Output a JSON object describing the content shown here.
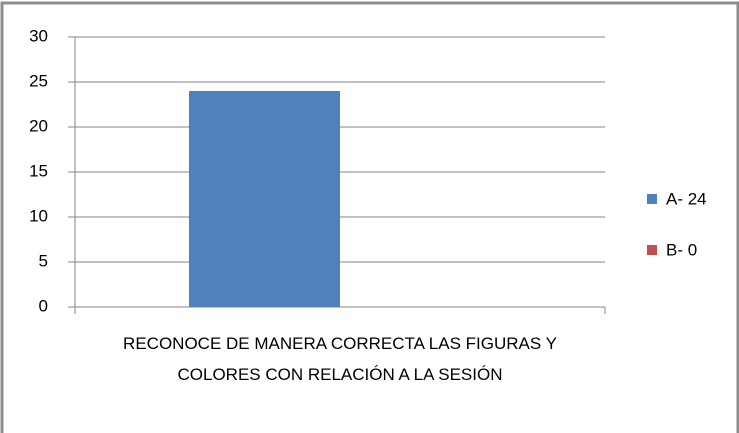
{
  "chart_data": {
    "type": "bar",
    "categories": [
      "RECONOCE DE MANERA CORRECTA LAS FIGURAS Y COLORES  CON RELACIÓN A LA SESIÓN"
    ],
    "series": [
      {
        "name": "A- 24",
        "color": "#4f81bd",
        "values": [
          24
        ]
      },
      {
        "name": "B- 0",
        "color": "#c0504d",
        "values": [
          0
        ]
      }
    ],
    "ylim": [
      0,
      30
    ],
    "yticks": [
      0,
      5,
      10,
      15,
      20,
      25,
      30
    ],
    "grid": true,
    "legend": "right"
  }
}
